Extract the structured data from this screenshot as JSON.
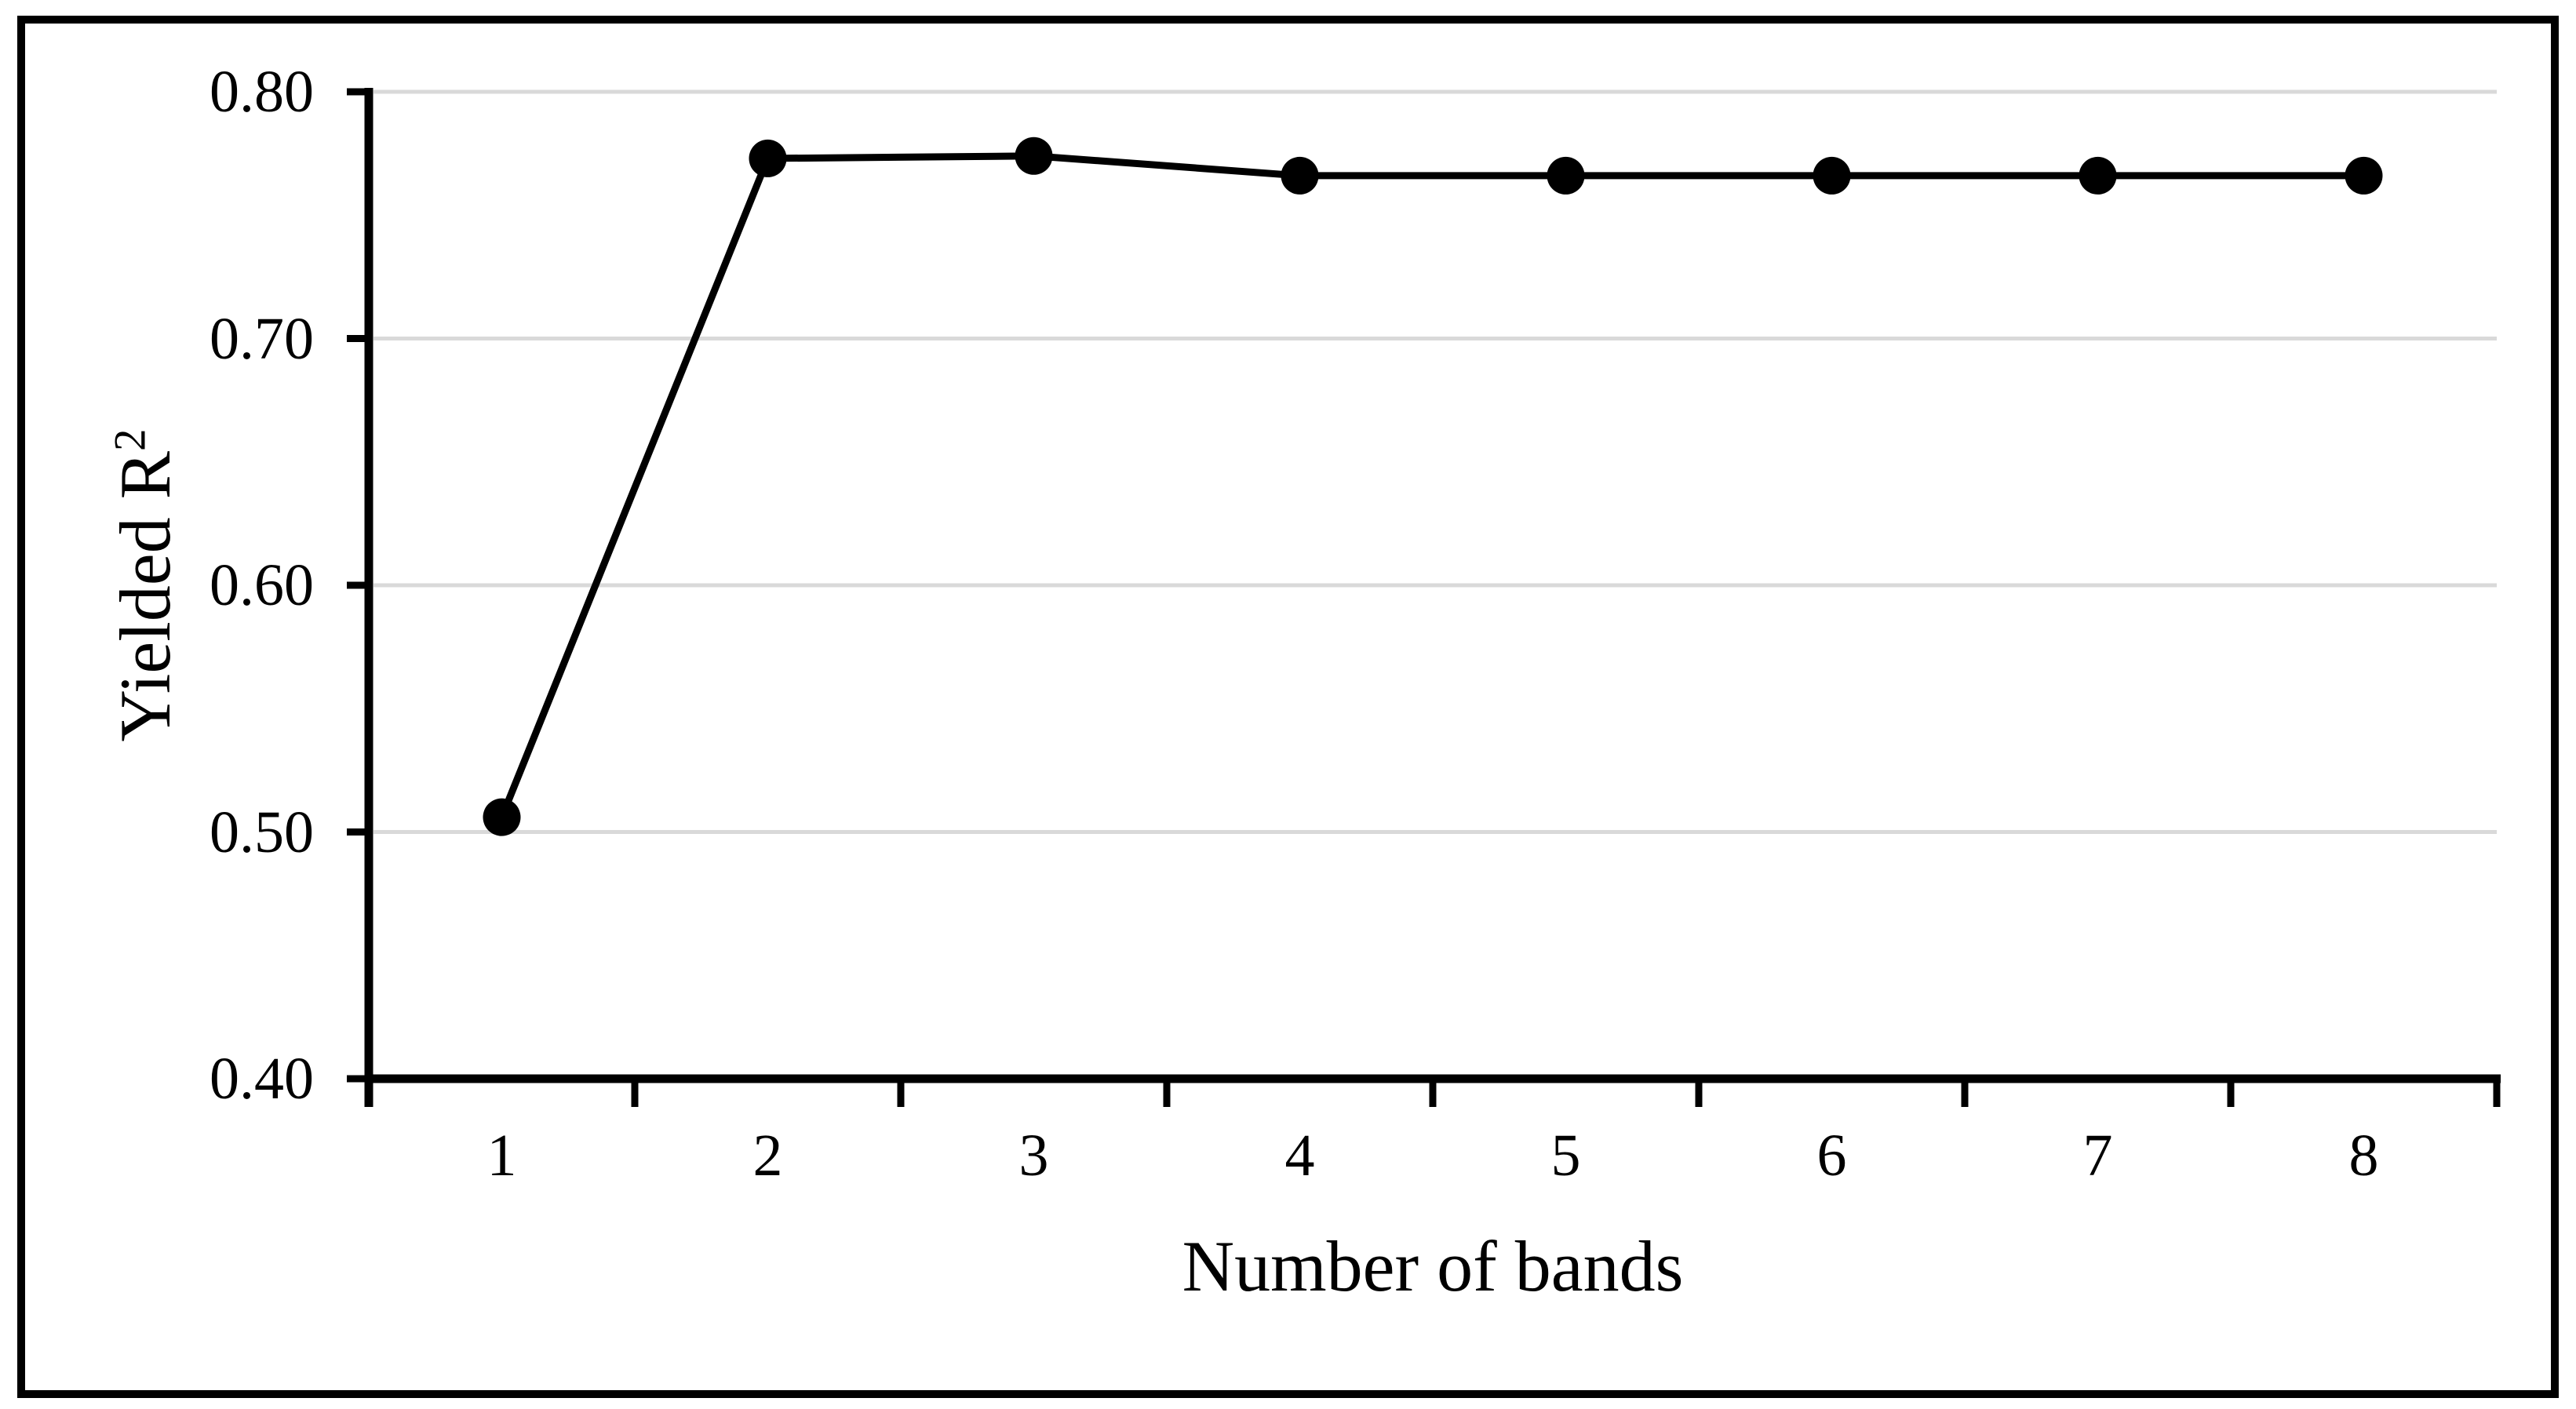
{
  "chart_data": {
    "type": "line",
    "title": "",
    "xlabel": "Number of bands",
    "ylabel": "Yielded R²",
    "ylabel_main": "Yielded R",
    "ylabel_sup": "2",
    "x": [
      1,
      2,
      3,
      4,
      5,
      6,
      7,
      8
    ],
    "x_tick_labels": [
      "1",
      "2",
      "3",
      "4",
      "5",
      "6",
      "7",
      "8"
    ],
    "series": [
      {
        "name": "Yielded R²",
        "values": [
          0.506,
          0.773,
          0.774,
          0.766,
          0.766,
          0.766,
          0.766,
          0.766
        ]
      }
    ],
    "ylim": [
      0.4,
      0.8
    ],
    "y_ticks": [
      0.4,
      0.5,
      0.6,
      0.7,
      0.8
    ],
    "y_tick_labels": [
      "0.40",
      "0.50",
      "0.60",
      "0.70",
      "0.80"
    ],
    "grid": "horizontal",
    "legend": "none",
    "marker": "filled-circle",
    "colors": {
      "line": "#000000",
      "marker": "#000000",
      "gridline": "#d9d9d9",
      "axis": "#000000",
      "border": "#000000",
      "background": "#ffffff",
      "text": "#000000"
    }
  }
}
